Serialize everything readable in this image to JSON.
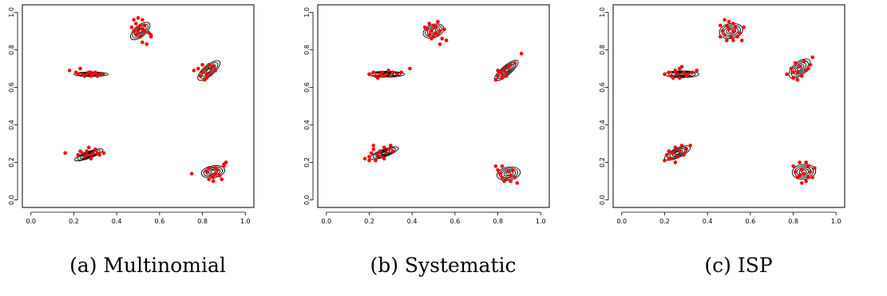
{
  "chart_data": [
    {
      "type": "scatter",
      "caption": "(a) Multinomial",
      "xlim": [
        0,
        1
      ],
      "ylim": [
        0,
        1
      ],
      "xticks": [
        "0.0",
        "0.2",
        "0.4",
        "0.6",
        "0.8",
        "1.0"
      ],
      "yticks": [
        "0.0",
        "0.2",
        "0.4",
        "0.6",
        "0.8",
        "1.0"
      ],
      "point_color": "#ff0000",
      "contour_color": "#000000",
      "clusters": [
        {
          "cx": 0.51,
          "cy": 0.9,
          "rx": 0.055,
          "ry": 0.03,
          "angle": 40
        },
        {
          "cx": 0.28,
          "cy": 0.67,
          "rx": 0.08,
          "ry": 0.012,
          "angle": 0
        },
        {
          "cx": 0.83,
          "cy": 0.69,
          "rx": 0.065,
          "ry": 0.028,
          "angle": 40
        },
        {
          "cx": 0.27,
          "cy": 0.24,
          "rx": 0.07,
          "ry": 0.018,
          "angle": 20
        },
        {
          "cx": 0.85,
          "cy": 0.15,
          "rx": 0.055,
          "ry": 0.032,
          "angle": 10
        }
      ],
      "points": [
        [
          0.48,
          0.96
        ],
        [
          0.5,
          0.97
        ],
        [
          0.52,
          0.96
        ],
        [
          0.49,
          0.94
        ],
        [
          0.51,
          0.93
        ],
        [
          0.53,
          0.93
        ],
        [
          0.47,
          0.92
        ],
        [
          0.5,
          0.92
        ],
        [
          0.52,
          0.91
        ],
        [
          0.48,
          0.9
        ],
        [
          0.5,
          0.89
        ],
        [
          0.53,
          0.9
        ],
        [
          0.55,
          0.89
        ],
        [
          0.49,
          0.88
        ],
        [
          0.51,
          0.87
        ],
        [
          0.56,
          0.88
        ],
        [
          0.56,
          0.87
        ],
        [
          0.52,
          0.84
        ],
        [
          0.54,
          0.83
        ],
        [
          0.5,
          0.9
        ],
        [
          0.18,
          0.69
        ],
        [
          0.21,
          0.68
        ],
        [
          0.23,
          0.7
        ],
        [
          0.24,
          0.67
        ],
        [
          0.26,
          0.67
        ],
        [
          0.27,
          0.68
        ],
        [
          0.28,
          0.66
        ],
        [
          0.29,
          0.67
        ],
        [
          0.3,
          0.68
        ],
        [
          0.31,
          0.66
        ],
        [
          0.32,
          0.67
        ],
        [
          0.33,
          0.67
        ],
        [
          0.25,
          0.66
        ],
        [
          0.22,
          0.67
        ],
        [
          0.28,
          0.68
        ],
        [
          0.76,
          0.69
        ],
        [
          0.79,
          0.66
        ],
        [
          0.8,
          0.68
        ],
        [
          0.81,
          0.7
        ],
        [
          0.82,
          0.67
        ],
        [
          0.83,
          0.72
        ],
        [
          0.84,
          0.7
        ],
        [
          0.85,
          0.71
        ],
        [
          0.86,
          0.69
        ],
        [
          0.82,
          0.65
        ],
        [
          0.8,
          0.72
        ],
        [
          0.84,
          0.67
        ],
        [
          0.78,
          0.7
        ],
        [
          0.81,
          0.64
        ],
        [
          0.16,
          0.25
        ],
        [
          0.22,
          0.24
        ],
        [
          0.24,
          0.25
        ],
        [
          0.25,
          0.23
        ],
        [
          0.26,
          0.26
        ],
        [
          0.27,
          0.28
        ],
        [
          0.28,
          0.24
        ],
        [
          0.29,
          0.25
        ],
        [
          0.3,
          0.27
        ],
        [
          0.31,
          0.25
        ],
        [
          0.34,
          0.25
        ],
        [
          0.26,
          0.24
        ],
        [
          0.23,
          0.26
        ],
        [
          0.28,
          0.22
        ],
        [
          0.32,
          0.24
        ],
        [
          0.75,
          0.14
        ],
        [
          0.82,
          0.15
        ],
        [
          0.83,
          0.17
        ],
        [
          0.84,
          0.13
        ],
        [
          0.85,
          0.12
        ],
        [
          0.86,
          0.14
        ],
        [
          0.87,
          0.16
        ],
        [
          0.88,
          0.13
        ],
        [
          0.89,
          0.11
        ],
        [
          0.9,
          0.19
        ],
        [
          0.91,
          0.2
        ],
        [
          0.85,
          0.1
        ],
        [
          0.83,
          0.11
        ],
        [
          0.86,
          0.17
        ],
        [
          0.9,
          0.18
        ]
      ]
    },
    {
      "type": "scatter",
      "caption": "(b) Systematic",
      "xlim": [
        0,
        1
      ],
      "ylim": [
        0,
        1
      ],
      "xticks": [
        "0.0",
        "0.2",
        "0.4",
        "0.6",
        "0.8",
        "1.0"
      ],
      "yticks": [
        "0.0",
        "0.2",
        "0.4",
        "0.6",
        "0.8",
        "1.0"
      ],
      "point_color": "#ff0000",
      "contour_color": "#000000",
      "clusters": [
        {
          "cx": 0.5,
          "cy": 0.9,
          "rx": 0.05,
          "ry": 0.035,
          "angle": 20
        },
        {
          "cx": 0.28,
          "cy": 0.67,
          "rx": 0.085,
          "ry": 0.015,
          "angle": 0
        },
        {
          "cx": 0.84,
          "cy": 0.69,
          "rx": 0.07,
          "ry": 0.025,
          "angle": 40
        },
        {
          "cx": 0.27,
          "cy": 0.25,
          "rx": 0.07,
          "ry": 0.02,
          "angle": 20
        },
        {
          "cx": 0.85,
          "cy": 0.14,
          "rx": 0.055,
          "ry": 0.035,
          "angle": 10
        }
      ],
      "points": [
        [
          0.46,
          0.92
        ],
        [
          0.48,
          0.94
        ],
        [
          0.5,
          0.93
        ],
        [
          0.52,
          0.95
        ],
        [
          0.47,
          0.91
        ],
        [
          0.49,
          0.9
        ],
        [
          0.51,
          0.89
        ],
        [
          0.53,
          0.9
        ],
        [
          0.55,
          0.91
        ],
        [
          0.48,
          0.88
        ],
        [
          0.5,
          0.87
        ],
        [
          0.52,
          0.88
        ],
        [
          0.54,
          0.86
        ],
        [
          0.56,
          0.85
        ],
        [
          0.53,
          0.83
        ],
        [
          0.49,
          0.86
        ],
        [
          0.51,
          0.92
        ],
        [
          0.2,
          0.67
        ],
        [
          0.22,
          0.68
        ],
        [
          0.23,
          0.66
        ],
        [
          0.24,
          0.65
        ],
        [
          0.25,
          0.67
        ],
        [
          0.26,
          0.68
        ],
        [
          0.27,
          0.66
        ],
        [
          0.28,
          0.67
        ],
        [
          0.29,
          0.69
        ],
        [
          0.3,
          0.66
        ],
        [
          0.31,
          0.68
        ],
        [
          0.33,
          0.67
        ],
        [
          0.35,
          0.68
        ],
        [
          0.39,
          0.7
        ],
        [
          0.26,
          0.66
        ],
        [
          0.79,
          0.64
        ],
        [
          0.8,
          0.66
        ],
        [
          0.81,
          0.68
        ],
        [
          0.82,
          0.67
        ],
        [
          0.83,
          0.7
        ],
        [
          0.84,
          0.68
        ],
        [
          0.85,
          0.71
        ],
        [
          0.86,
          0.72
        ],
        [
          0.88,
          0.73
        ],
        [
          0.91,
          0.78
        ],
        [
          0.82,
          0.65
        ],
        [
          0.8,
          0.69
        ],
        [
          0.84,
          0.66
        ],
        [
          0.18,
          0.22
        ],
        [
          0.2,
          0.23
        ],
        [
          0.21,
          0.25
        ],
        [
          0.22,
          0.27
        ],
        [
          0.23,
          0.21
        ],
        [
          0.24,
          0.24
        ],
        [
          0.25,
          0.26
        ],
        [
          0.26,
          0.23
        ],
        [
          0.27,
          0.28
        ],
        [
          0.28,
          0.25
        ],
        [
          0.29,
          0.27
        ],
        [
          0.3,
          0.29
        ],
        [
          0.31,
          0.26
        ],
        [
          0.22,
          0.29
        ],
        [
          0.2,
          0.21
        ],
        [
          0.27,
          0.22
        ],
        [
          0.79,
          0.18
        ],
        [
          0.8,
          0.16
        ],
        [
          0.81,
          0.14
        ],
        [
          0.82,
          0.12
        ],
        [
          0.83,
          0.1
        ],
        [
          0.85,
          0.15
        ],
        [
          0.86,
          0.13
        ],
        [
          0.87,
          0.16
        ],
        [
          0.88,
          0.12
        ],
        [
          0.89,
          0.09
        ],
        [
          0.84,
          0.11
        ],
        [
          0.82,
          0.18
        ],
        [
          0.86,
          0.1
        ]
      ]
    },
    {
      "type": "scatter",
      "caption": "(c) ISP",
      "xlim": [
        0,
        1
      ],
      "ylim": [
        0,
        1
      ],
      "xticks": [
        "0.0",
        "0.2",
        "0.4",
        "0.6",
        "0.8",
        "1.0"
      ],
      "yticks": [
        "0.0",
        "0.2",
        "0.4",
        "0.6",
        "0.8",
        "1.0"
      ],
      "point_color": "#ff0000",
      "contour_color": "#000000",
      "clusters": [
        {
          "cx": 0.51,
          "cy": 0.9,
          "rx": 0.055,
          "ry": 0.04,
          "angle": 10
        },
        {
          "cx": 0.28,
          "cy": 0.67,
          "rx": 0.08,
          "ry": 0.018,
          "angle": 0
        },
        {
          "cx": 0.83,
          "cy": 0.7,
          "rx": 0.06,
          "ry": 0.035,
          "angle": 40
        },
        {
          "cx": 0.26,
          "cy": 0.25,
          "rx": 0.065,
          "ry": 0.025,
          "angle": 25
        },
        {
          "cx": 0.85,
          "cy": 0.15,
          "rx": 0.055,
          "ry": 0.04,
          "angle": 5
        }
      ],
      "points": [
        [
          0.48,
          0.96
        ],
        [
          0.5,
          0.95
        ],
        [
          0.52,
          0.94
        ],
        [
          0.46,
          0.93
        ],
        [
          0.49,
          0.93
        ],
        [
          0.53,
          0.92
        ],
        [
          0.57,
          0.92
        ],
        [
          0.47,
          0.9
        ],
        [
          0.5,
          0.91
        ],
        [
          0.52,
          0.9
        ],
        [
          0.55,
          0.89
        ],
        [
          0.48,
          0.88
        ],
        [
          0.51,
          0.87
        ],
        [
          0.54,
          0.87
        ],
        [
          0.46,
          0.87
        ],
        [
          0.49,
          0.85
        ],
        [
          0.52,
          0.85
        ],
        [
          0.56,
          0.85
        ],
        [
          0.2,
          0.67
        ],
        [
          0.22,
          0.68
        ],
        [
          0.23,
          0.66
        ],
        [
          0.25,
          0.69
        ],
        [
          0.26,
          0.67
        ],
        [
          0.27,
          0.65
        ],
        [
          0.28,
          0.71
        ],
        [
          0.29,
          0.68
        ],
        [
          0.3,
          0.66
        ],
        [
          0.31,
          0.67
        ],
        [
          0.33,
          0.68
        ],
        [
          0.35,
          0.69
        ],
        [
          0.24,
          0.65
        ],
        [
          0.27,
          0.7
        ],
        [
          0.77,
          0.67
        ],
        [
          0.79,
          0.7
        ],
        [
          0.8,
          0.65
        ],
        [
          0.81,
          0.73
        ],
        [
          0.82,
          0.68
        ],
        [
          0.83,
          0.71
        ],
        [
          0.84,
          0.66
        ],
        [
          0.85,
          0.74
        ],
        [
          0.86,
          0.69
        ],
        [
          0.88,
          0.72
        ],
        [
          0.89,
          0.76
        ],
        [
          0.82,
          0.64
        ],
        [
          0.8,
          0.68
        ],
        [
          0.87,
          0.7
        ],
        [
          0.2,
          0.21
        ],
        [
          0.21,
          0.24
        ],
        [
          0.22,
          0.26
        ],
        [
          0.23,
          0.22
        ],
        [
          0.24,
          0.25
        ],
        [
          0.25,
          0.28
        ],
        [
          0.26,
          0.23
        ],
        [
          0.27,
          0.26
        ],
        [
          0.28,
          0.29
        ],
        [
          0.29,
          0.24
        ],
        [
          0.3,
          0.27
        ],
        [
          0.32,
          0.29
        ],
        [
          0.22,
          0.22
        ],
        [
          0.25,
          0.2
        ],
        [
          0.8,
          0.18
        ],
        [
          0.81,
          0.15
        ],
        [
          0.82,
          0.12
        ],
        [
          0.83,
          0.2
        ],
        [
          0.84,
          0.16
        ],
        [
          0.85,
          0.14
        ],
        [
          0.86,
          0.1
        ],
        [
          0.87,
          0.18
        ],
        [
          0.88,
          0.15
        ],
        [
          0.89,
          0.12
        ],
        [
          0.9,
          0.17
        ],
        [
          0.84,
          0.09
        ],
        [
          0.83,
          0.13
        ],
        [
          0.86,
          0.2
        ],
        [
          0.87,
          0.12
        ]
      ]
    }
  ]
}
